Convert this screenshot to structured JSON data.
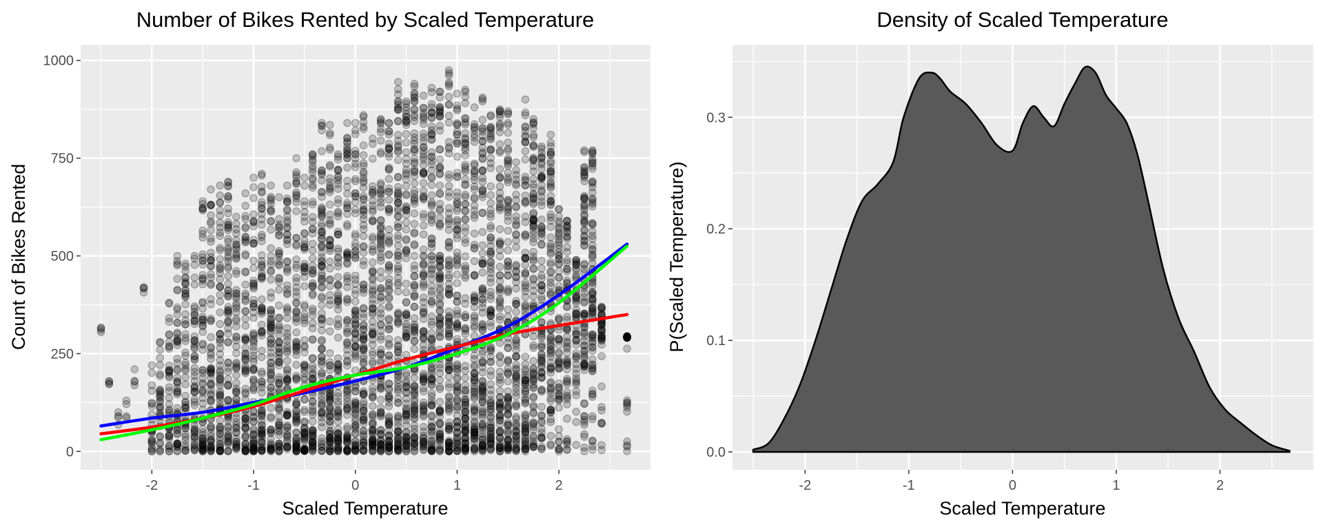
{
  "chart_data": [
    {
      "type": "scatter",
      "title": "Number of Bikes Rented by Scaled Temperature",
      "xlabel": "Scaled Temperature",
      "ylabel": "Count of Bikes Rented",
      "xlim": [
        -2.7,
        2.9
      ],
      "ylim": [
        -47,
        1040
      ],
      "xticks": [
        -2,
        -1,
        0,
        1,
        2
      ],
      "xtick_labels": [
        "-2",
        "-1",
        "0",
        "1",
        "2"
      ],
      "yticks": [
        0,
        250,
        500,
        750,
        1000
      ],
      "ytick_labels": [
        "0",
        "250",
        "500",
        "750",
        "1000"
      ],
      "grid": true,
      "legend": "none",
      "point_color": "#000000",
      "point_opacity": 0.2,
      "x_positions": [
        -2.5,
        -2.42,
        -2.33,
        -2.25,
        -2.17,
        -2.08,
        -2.0,
        -1.92,
        -1.83,
        -1.75,
        -1.67,
        -1.58,
        -1.5,
        -1.42,
        -1.33,
        -1.25,
        -1.17,
        -1.08,
        -1.0,
        -0.92,
        -0.83,
        -0.75,
        -0.67,
        -0.58,
        -0.5,
        -0.42,
        -0.33,
        -0.25,
        -0.17,
        -0.08,
        0.0,
        0.08,
        0.17,
        0.25,
        0.33,
        0.42,
        0.5,
        0.58,
        0.67,
        0.75,
        0.83,
        0.92,
        1.0,
        1.08,
        1.17,
        1.25,
        1.33,
        1.42,
        1.5,
        1.58,
        1.67,
        1.75,
        1.83,
        1.92,
        2.0,
        2.08,
        2.17,
        2.25,
        2.33,
        2.42,
        2.67
      ],
      "column_max": [
        316,
        180,
        100,
        130,
        210,
        420,
        220,
        280,
        380,
        500,
        480,
        500,
        640,
        670,
        680,
        690,
        600,
        660,
        700,
        710,
        680,
        650,
        680,
        750,
        700,
        760,
        840,
        835,
        760,
        840,
        840,
        860,
        800,
        850,
        840,
        945,
        895,
        940,
        910,
        930,
        920,
        975,
        915,
        925,
        880,
        905,
        860,
        875,
        870,
        740,
        900,
        850,
        780,
        810,
        620,
        590,
        490,
        770,
        770,
        370,
        295
      ],
      "column_min_gap": [
        300,
        170,
        40,
        60,
        150,
        400,
        0,
        0,
        0,
        0,
        0,
        0,
        0,
        0,
        0,
        0,
        0,
        0,
        0,
        0,
        0,
        0,
        0,
        0,
        0,
        0,
        0,
        0,
        0,
        0,
        0,
        0,
        0,
        0,
        0,
        0,
        0,
        0,
        0,
        0,
        0,
        0,
        0,
        0,
        0,
        0,
        0,
        0,
        0,
        0,
        0,
        10,
        60,
        80,
        100,
        130,
        170,
        200,
        210,
        280,
        290
      ],
      "series": [
        {
          "name": "",
          "color": "#0000ff",
          "x": [
            -2.5,
            -2.0,
            -1.5,
            -1.0,
            -0.5,
            0.0,
            0.5,
            1.0,
            1.5,
            2.0,
            2.67
          ],
          "values": [
            65,
            85,
            100,
            125,
            150,
            180,
            215,
            265,
            320,
            400,
            530
          ]
        },
        {
          "name": "",
          "color": "#ff0000",
          "x": [
            -2.5,
            -2.0,
            -1.5,
            -1.0,
            -0.5,
            0.0,
            0.5,
            1.0,
            1.5,
            2.0,
            2.67
          ],
          "values": [
            45,
            62,
            85,
            115,
            155,
            195,
            235,
            268,
            300,
            322,
            350
          ]
        },
        {
          "name": "",
          "color": "#00ff00",
          "x": [
            -2.5,
            -2.0,
            -1.5,
            -1.0,
            -0.5,
            0.0,
            0.5,
            1.0,
            1.5,
            2.0,
            2.67
          ],
          "values": [
            30,
            55,
            85,
            120,
            165,
            195,
            215,
            250,
            300,
            380,
            525
          ]
        }
      ]
    },
    {
      "type": "area",
      "title": "Density of Scaled Temperature",
      "xlabel": "Scaled Temperature",
      "ylabel": "P(Scaled Temperature)",
      "xlim": [
        -2.7,
        2.9
      ],
      "ylim": [
        -0.016,
        0.365
      ],
      "xticks": [
        -2,
        -1,
        0,
        1,
        2
      ],
      "xtick_labels": [
        "-2",
        "-1",
        "0",
        "1",
        "2"
      ],
      "yticks": [
        0.0,
        0.1,
        0.2,
        0.3
      ],
      "ytick_labels": [
        "0.0",
        "0.1",
        "0.2",
        "0.3"
      ],
      "grid": true,
      "legend": "none",
      "fill_color": "#595959",
      "line_color": "#000000",
      "x": [
        -2.5,
        -2.35,
        -2.2,
        -2.05,
        -1.9,
        -1.75,
        -1.6,
        -1.45,
        -1.3,
        -1.15,
        -1.05,
        -0.9,
        -0.78,
        -0.7,
        -0.6,
        -0.45,
        -0.3,
        -0.15,
        0.0,
        0.1,
        0.2,
        0.3,
        0.4,
        0.5,
        0.6,
        0.7,
        0.8,
        0.9,
        1.0,
        1.1,
        1.2,
        1.3,
        1.45,
        1.6,
        1.75,
        1.9,
        2.05,
        2.2,
        2.35,
        2.5,
        2.67
      ],
      "y": [
        0.002,
        0.008,
        0.03,
        0.06,
        0.1,
        0.145,
        0.19,
        0.225,
        0.24,
        0.26,
        0.3,
        0.335,
        0.34,
        0.335,
        0.323,
        0.312,
        0.295,
        0.275,
        0.27,
        0.295,
        0.31,
        0.3,
        0.292,
        0.312,
        0.33,
        0.345,
        0.34,
        0.32,
        0.308,
        0.295,
        0.268,
        0.228,
        0.165,
        0.12,
        0.09,
        0.058,
        0.038,
        0.026,
        0.015,
        0.006,
        0.001
      ]
    }
  ]
}
